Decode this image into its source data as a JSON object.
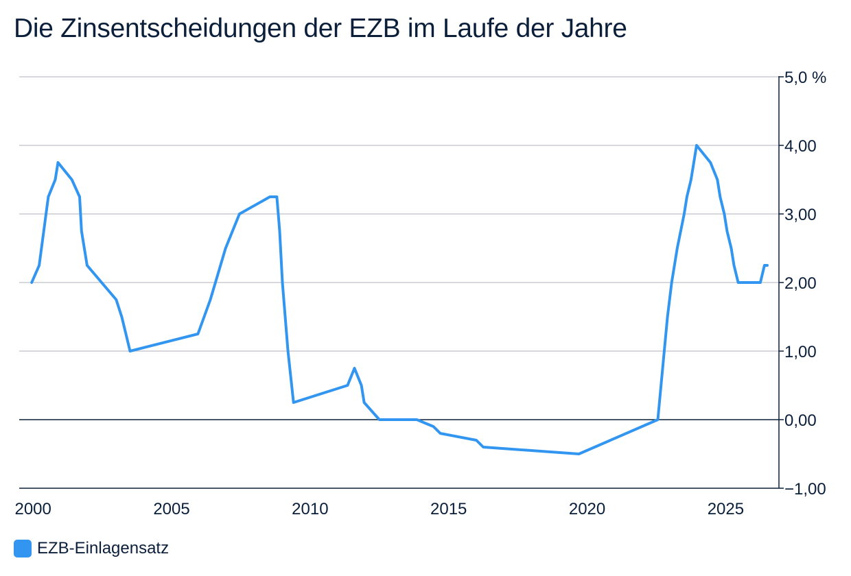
{
  "chart_data": {
    "type": "line",
    "title": "Die Zinsentscheidungen der EZB im Laufe der Jahre",
    "xlim": [
      1999.5,
      2026.6
    ],
    "ylim": [
      -1,
      5
    ],
    "x_ticks": [
      2000,
      2005,
      2010,
      2015,
      2020,
      2025
    ],
    "x_tick_labels": [
      "2000",
      "2005",
      "2010",
      "2015",
      "2020",
      "2025"
    ],
    "y_ticks": [
      5,
      4,
      3,
      2,
      1,
      0,
      -1
    ],
    "y_tick_labels": [
      "5,0 %",
      "4,00",
      "3,00",
      "2,00",
      "1,00",
      "0,00",
      "−1,00"
    ],
    "grid": true,
    "zero_line": true,
    "legend_position": "bottom-left",
    "colors": {
      "series": "#3296f0",
      "text": "#0b1f3a",
      "grid": "#c8cbd2",
      "axis": "#0b1f3a"
    },
    "series": [
      {
        "name": "EZB-Einlagensatz",
        "x": [
          1999.95,
          2000.22,
          2000.55,
          2000.8,
          2000.9,
          2001.4,
          2001.68,
          2001.75,
          2001.95,
          2003.0,
          2003.2,
          2003.5,
          2005.95,
          2006.4,
          2006.95,
          2007.45,
          2008.55,
          2008.8,
          2008.9,
          2009.0,
          2009.2,
          2009.4,
          2011.35,
          2011.6,
          2011.85,
          2011.95,
          2012.5,
          2013.85,
          2014.45,
          2014.7,
          2016.0,
          2016.25,
          2019.7,
          2022.55,
          2022.9,
          2023.05,
          2023.25,
          2023.5,
          2023.6,
          2023.75,
          2023.95,
          2024.45,
          2024.7,
          2024.8,
          2024.95,
          2025.05,
          2025.2,
          2025.3,
          2025.45,
          2026.25,
          2026.4,
          2026.5
        ],
        "values": [
          2.0,
          2.25,
          3.25,
          3.5,
          3.75,
          3.5,
          3.25,
          2.75,
          2.25,
          1.75,
          1.5,
          1.0,
          1.25,
          1.75,
          2.5,
          3.0,
          3.25,
          3.25,
          2.75,
          2.0,
          1.0,
          0.25,
          0.5,
          0.75,
          0.5,
          0.25,
          0.0,
          0.0,
          -0.1,
          -0.2,
          -0.3,
          -0.4,
          -0.5,
          0.0,
          1.5,
          2.0,
          2.5,
          3.0,
          3.25,
          3.5,
          4.0,
          3.75,
          3.5,
          3.25,
          3.0,
          2.75,
          2.5,
          2.25,
          2.0,
          2.0,
          2.25,
          2.25
        ]
      }
    ]
  }
}
